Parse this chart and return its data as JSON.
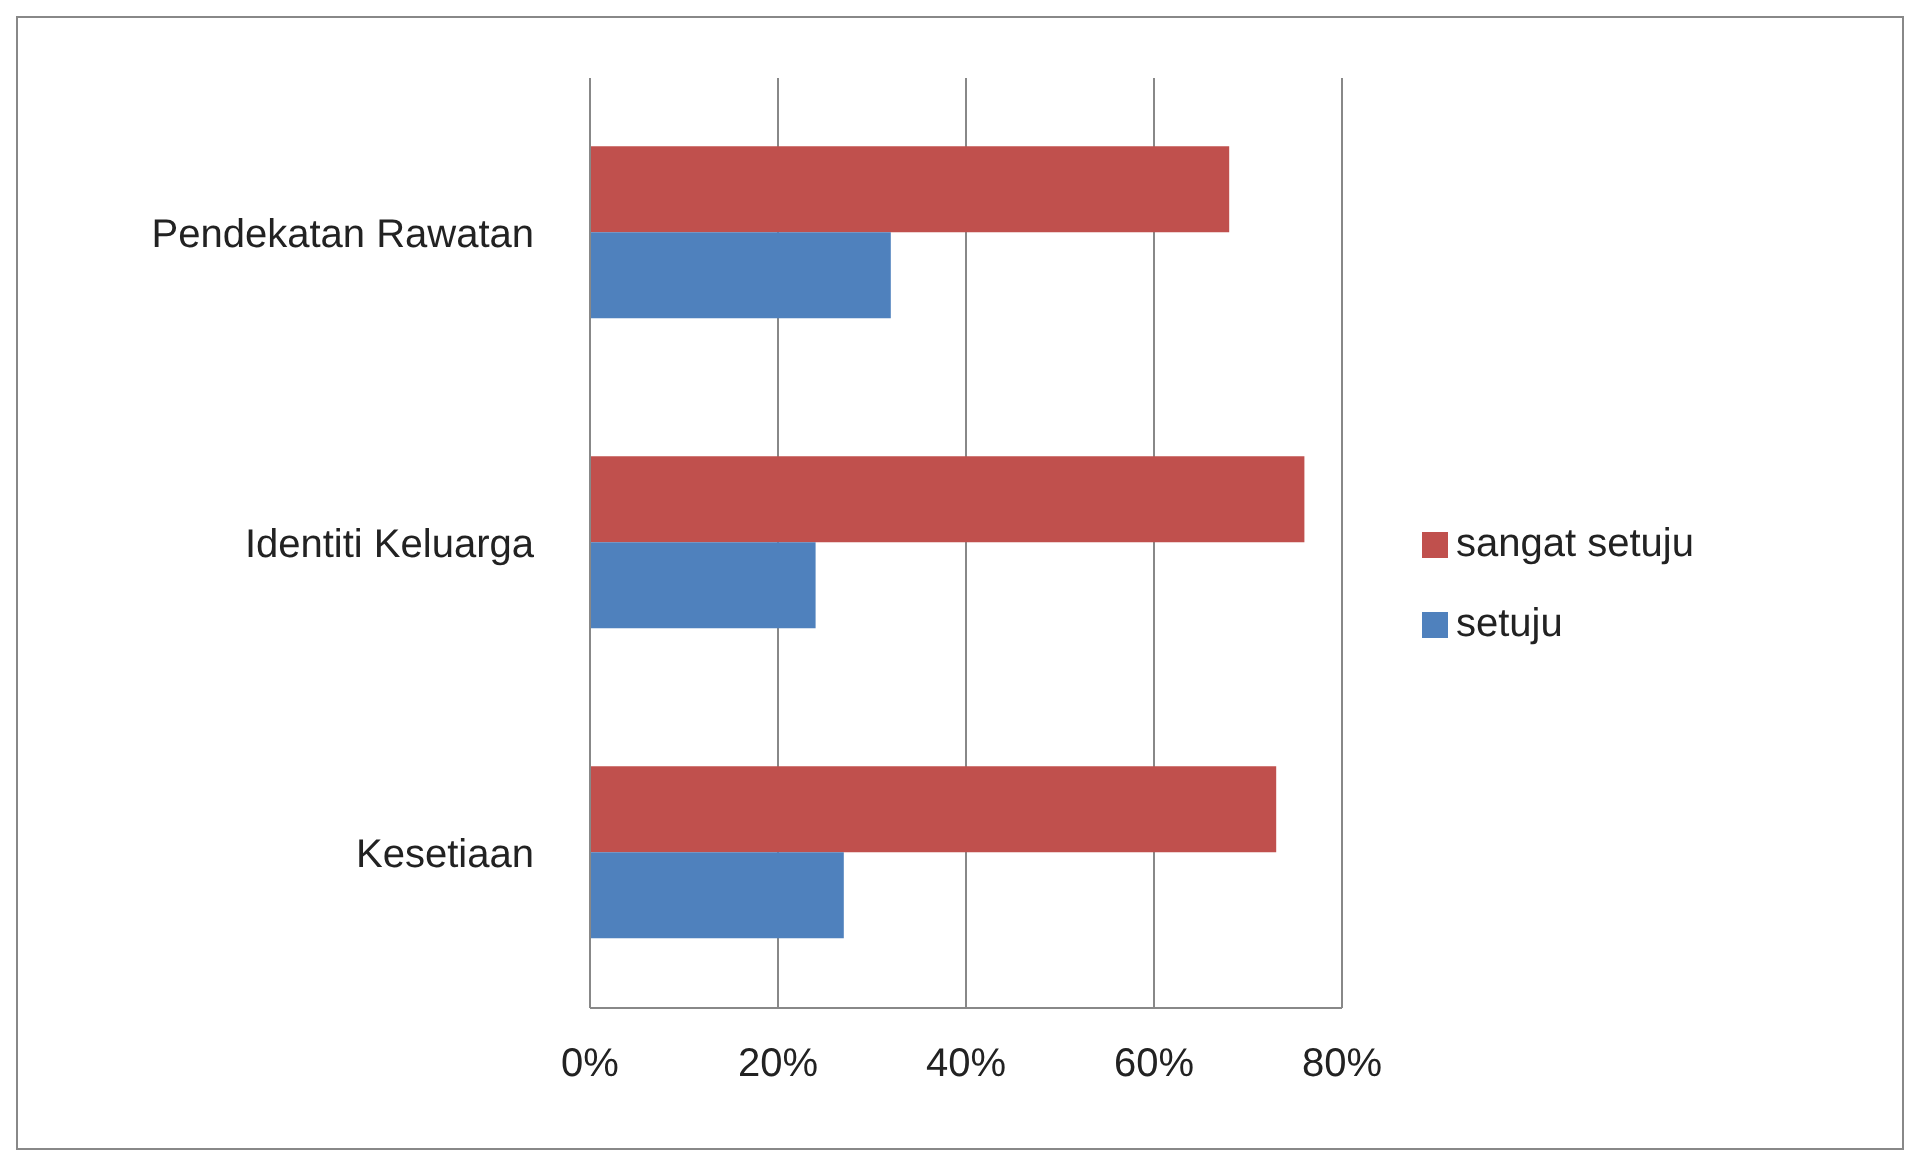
{
  "chart_data": {
    "type": "bar",
    "orientation": "horizontal",
    "categories": [
      "Pendekatan Rawatan",
      "Identiti Keluarga",
      "Kesetiaan"
    ],
    "series": [
      {
        "name": "sangat setuju",
        "color": "#c0504d",
        "values": [
          68,
          76,
          73
        ]
      },
      {
        "name": "setuju",
        "color": "#4f81bd",
        "values": [
          32,
          24,
          27
        ]
      }
    ],
    "xlim": [
      0,
      80
    ],
    "xticks": [
      {
        "value": 0,
        "label": "0%"
      },
      {
        "value": 20,
        "label": "20%"
      },
      {
        "value": 40,
        "label": "40%"
      },
      {
        "value": 60,
        "label": "60%"
      },
      {
        "value": 80,
        "label": "80%"
      }
    ],
    "grid": "x",
    "legend": "right"
  }
}
